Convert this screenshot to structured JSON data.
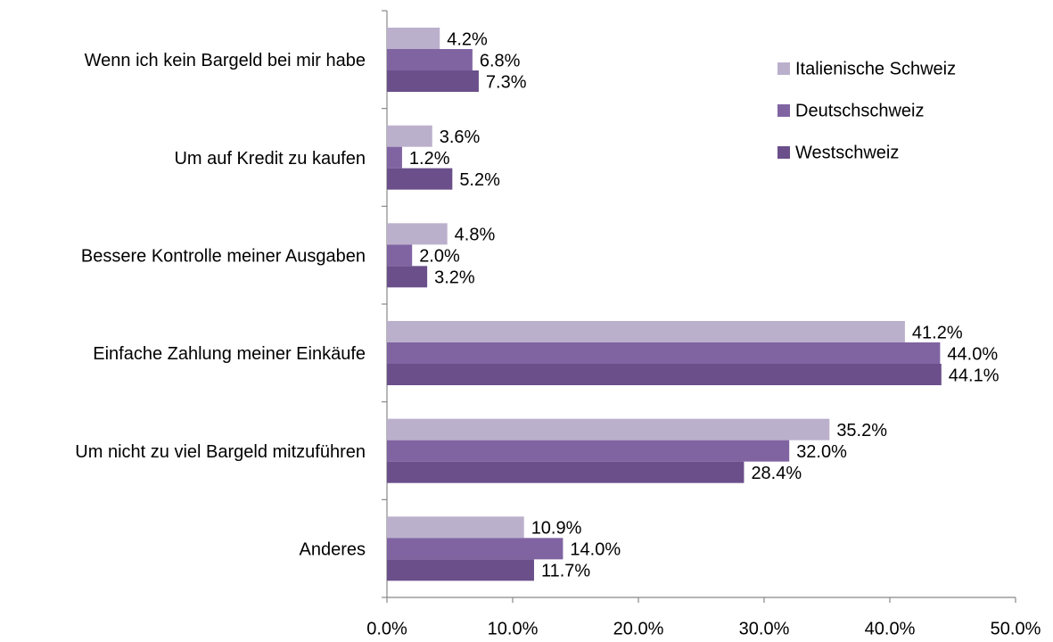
{
  "chart_data": {
    "type": "hbar",
    "categories": [
      "Wenn ich kein Bargeld bei mir habe",
      "Um auf Kredit zu kaufen",
      "Bessere Kontrolle meiner Ausgaben",
      "Einfache Zahlung meiner Einkäufe",
      "Um nicht zu viel Bargeld mitzuführen",
      "Anderes"
    ],
    "series": [
      {
        "name": "Italienische Schweiz",
        "color": "#bbb0cc",
        "values": [
          4.2,
          3.6,
          4.8,
          41.2,
          35.2,
          10.9
        ],
        "value_labels": [
          "4.2%",
          "3.6%",
          "4.8%",
          "41.2%",
          "35.2%",
          "10.9%"
        ]
      },
      {
        "name": "Deutschschweiz",
        "color": "#8064a2",
        "values": [
          6.8,
          1.2,
          2.0,
          44.0,
          32.0,
          14.0
        ],
        "value_labels": [
          "6.8%",
          "1.2%",
          "2.0%",
          "44.0%",
          "32.0%",
          "14.0%"
        ]
      },
      {
        "name": "Westschweiz",
        "color": "#6a4f8a",
        "values": [
          7.3,
          5.2,
          3.2,
          44.1,
          28.4,
          11.7
        ],
        "value_labels": [
          "7.3%",
          "5.2%",
          "3.2%",
          "44.1%",
          "28.4%",
          "11.7%"
        ]
      }
    ],
    "xlim": [
      0,
      50
    ],
    "xticks": [
      {
        "value": 0,
        "label": "0.0%"
      },
      {
        "value": 10,
        "label": "10.0%"
      },
      {
        "value": 20,
        "label": "20.0%"
      },
      {
        "value": 30,
        "label": "30.0%"
      },
      {
        "value": 40,
        "label": "40.0%"
      },
      {
        "value": 50,
        "label": "50.0%"
      }
    ],
    "grid": false,
    "legend": "upper-right"
  }
}
